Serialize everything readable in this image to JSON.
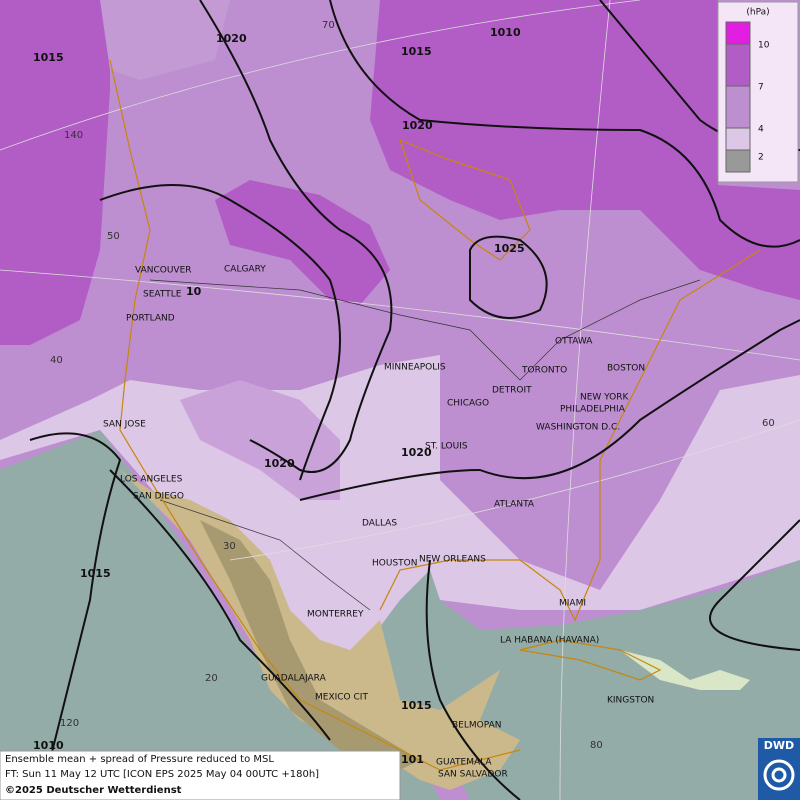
{
  "legend": {
    "unit": "(hPa)",
    "ticks": [
      10,
      7,
      4,
      2
    ]
  },
  "isobar_labels": [
    "1015",
    "1020",
    "1015",
    "1010",
    "1020",
    "1025",
    "10",
    "1020",
    "1020",
    "1015",
    "1015",
    "1010",
    "101"
  ],
  "graticule_labels": [
    "70",
    "140",
    "50",
    "40",
    "30",
    "20",
    "120",
    "60",
    "80"
  ],
  "cities": [
    "VANCOUVER",
    "CALGARY",
    "SEATTLE",
    "PORTLAND",
    "MINNEAPOLIS",
    "OTTAWA",
    "TORONTO",
    "BOSTON",
    "DETROIT",
    "NEW YORK",
    "PHILADELPHIA",
    "CHICAGO",
    "WASHINGTON D.C.",
    "ST. LOUIS",
    "SAN JOSE",
    "LOS ANGELES",
    "SAN DIEGO",
    "ATLANTA",
    "DALLAS",
    "HOUSTON",
    "NEW ORLEANS",
    "MIAMI",
    "MONTERREY",
    "LA HABANA (HAVANA)",
    "GUADALAJARA",
    "MEXICO CIT",
    "KINGSTON",
    "BELMOPAN",
    "GUATEMALA",
    "SAN SALVADOR"
  ],
  "footer": {
    "lines": [
      "Ensemble mean + spread of Pressure reduced to MSL",
      "FT: Sun 11 May 12 UTC [ICON EPS 2025 May 04 00UTC +180h]",
      "©2025 Deutscher Wetterdienst"
    ]
  },
  "logo": "DWD"
}
